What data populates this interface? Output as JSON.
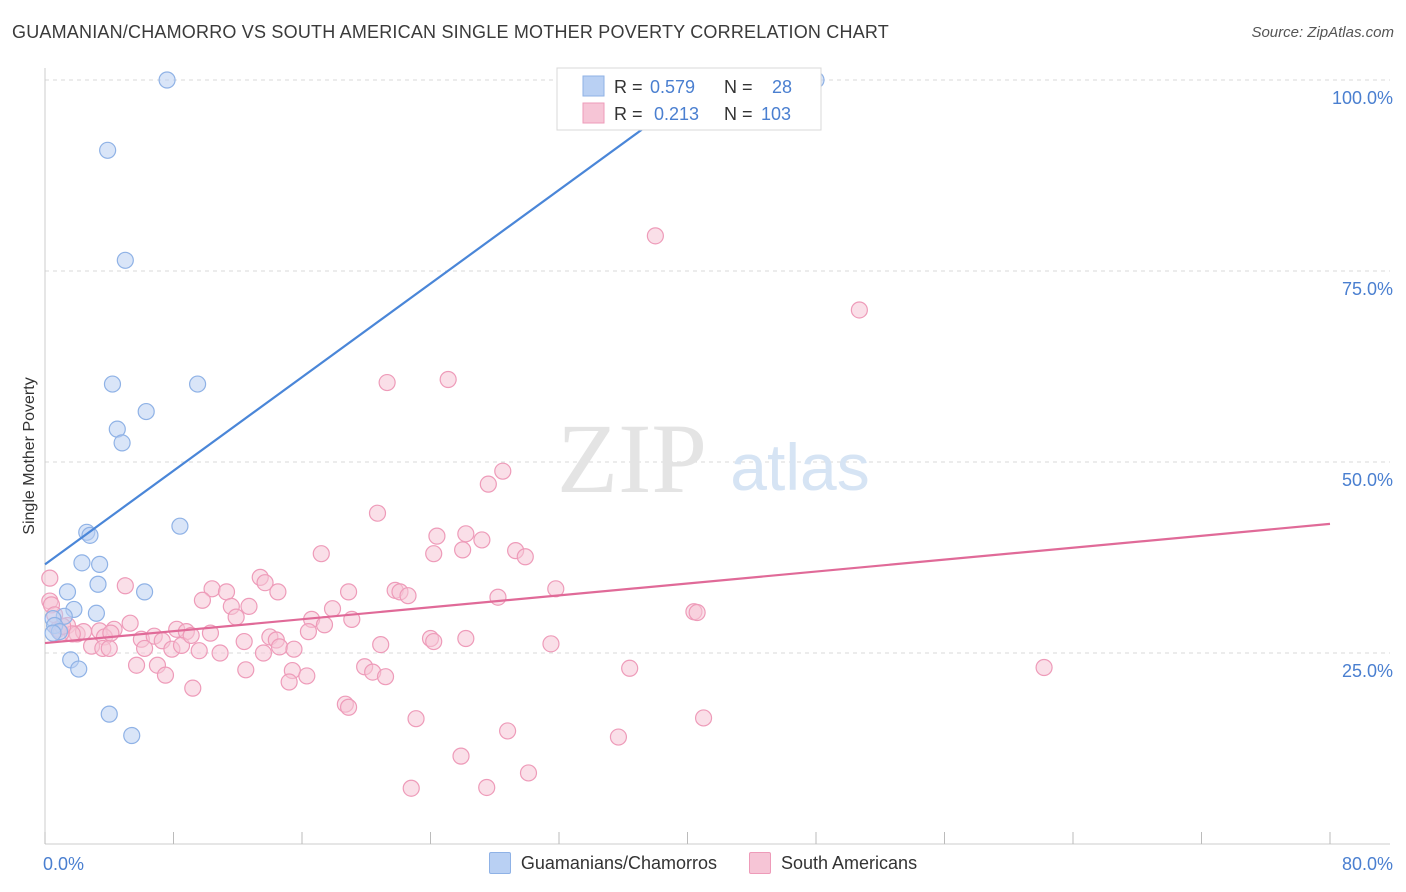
{
  "header": {
    "title": "GUAMANIAN/CHAMORRO VS SOUTH AMERICAN SINGLE MOTHER POVERTY CORRELATION CHART",
    "source": "Source: ZipAtlas.com"
  },
  "watermark": {
    "part1": "ZIP",
    "part2": "atlas"
  },
  "colors": {
    "blue": "#4a86d8",
    "blue_fill": "#b9d0f3",
    "blue_stroke": "#8fb2e6",
    "pink": "#e06a98",
    "pink_fill": "#f6c5d6",
    "pink_stroke": "#ee9bb9",
    "axis_label": "#4a7fd0",
    "grid": "#d9d9d9"
  },
  "stats_legend": [
    {
      "r_label": "R =",
      "r_value": "0.579",
      "n_label": "N =",
      "n_value": "28",
      "series": "blue"
    },
    {
      "r_label": "R =",
      "r_value": "0.213",
      "n_label": "N =",
      "n_value": "103",
      "series": "pink"
    }
  ],
  "bottom_legend": [
    {
      "label": "Guamanians/Chamorros",
      "series": "blue"
    },
    {
      "label": "South Americans",
      "series": "pink"
    }
  ],
  "chart_data": {
    "type": "scatter",
    "xlabel": "",
    "ylabel": "Single Mother Poverty",
    "xlim": [
      0,
      80
    ],
    "ylim": [
      0,
      100
    ],
    "x_tick_labels": [
      "0.0%",
      "80.0%"
    ],
    "y_ticks": [
      {
        "value": 25,
        "label": "25.0%"
      },
      {
        "value": 50,
        "label": "50.0%"
      },
      {
        "value": 75,
        "label": "75.0%"
      },
      {
        "value": 100,
        "label": "100.0%"
      }
    ],
    "series": [
      {
        "name": "Guamanians/Chamorros",
        "color": "blue",
        "trend": {
          "x0": 0,
          "y0": 36.6,
          "x1": 41.4,
          "y1": 100
        },
        "points": [
          [
            7.6,
            100
          ],
          [
            48.0,
            100
          ],
          [
            3.9,
            90.8
          ],
          [
            5.0,
            76.4
          ],
          [
            4.2,
            60.2
          ],
          [
            9.5,
            60.2
          ],
          [
            6.3,
            56.6
          ],
          [
            4.5,
            54.3
          ],
          [
            4.8,
            52.5
          ],
          [
            8.4,
            41.6
          ],
          [
            2.6,
            40.8
          ],
          [
            2.8,
            40.4
          ],
          [
            2.3,
            36.8
          ],
          [
            3.4,
            36.6
          ],
          [
            3.3,
            34.0
          ],
          [
            6.2,
            33.0
          ],
          [
            1.4,
            33.0
          ],
          [
            1.8,
            30.7
          ],
          [
            3.2,
            30.2
          ],
          [
            1.2,
            29.8
          ],
          [
            0.5,
            29.5
          ],
          [
            0.6,
            28.6
          ],
          [
            0.9,
            27.8
          ],
          [
            0.5,
            27.6
          ],
          [
            1.6,
            24.1
          ],
          [
            2.1,
            22.9
          ],
          [
            4.0,
            17.0
          ],
          [
            5.4,
            14.2
          ]
        ]
      },
      {
        "name": "South Americans",
        "color": "pink",
        "trend": {
          "x0": 0,
          "y0": 26.3,
          "x1": 80,
          "y1": 41.9
        },
        "points": [
          [
            38.0,
            79.6
          ],
          [
            50.7,
            69.9
          ],
          [
            21.3,
            60.4
          ],
          [
            25.1,
            60.8
          ],
          [
            28.5,
            48.8
          ],
          [
            27.6,
            47.1
          ],
          [
            20.7,
            43.3
          ],
          [
            24.4,
            40.3
          ],
          [
            26.2,
            40.6
          ],
          [
            27.2,
            39.8
          ],
          [
            26.0,
            38.5
          ],
          [
            29.3,
            38.4
          ],
          [
            24.2,
            38.0
          ],
          [
            29.9,
            37.6
          ],
          [
            17.2,
            38.0
          ],
          [
            13.4,
            34.9
          ],
          [
            13.7,
            34.2
          ],
          [
            5.0,
            33.8
          ],
          [
            10.4,
            33.4
          ],
          [
            11.3,
            33.0
          ],
          [
            14.5,
            33.0
          ],
          [
            18.9,
            33.0
          ],
          [
            21.8,
            33.2
          ],
          [
            22.1,
            33.0
          ],
          [
            22.6,
            32.5
          ],
          [
            31.8,
            33.4
          ],
          [
            9.8,
            31.9
          ],
          [
            11.6,
            31.1
          ],
          [
            12.7,
            31.1
          ],
          [
            17.9,
            30.8
          ],
          [
            28.2,
            32.3
          ],
          [
            40.4,
            30.4
          ],
          [
            40.6,
            30.3
          ],
          [
            11.9,
            29.7
          ],
          [
            16.6,
            29.4
          ],
          [
            19.1,
            29.4
          ],
          [
            5.3,
            28.9
          ],
          [
            17.4,
            28.7
          ],
          [
            1.4,
            28.6
          ],
          [
            0.8,
            28.1
          ],
          [
            2.0,
            27.5
          ],
          [
            3.4,
            27.9
          ],
          [
            4.3,
            28.1
          ],
          [
            8.2,
            28.1
          ],
          [
            8.8,
            27.8
          ],
          [
            10.3,
            27.6
          ],
          [
            14.0,
            27.1
          ],
          [
            16.4,
            27.8
          ],
          [
            2.4,
            27.8
          ],
          [
            1.7,
            27.5
          ],
          [
            1.0,
            27.6
          ],
          [
            3.7,
            27.1
          ],
          [
            6.0,
            26.8
          ],
          [
            6.8,
            27.2
          ],
          [
            7.3,
            26.6
          ],
          [
            12.4,
            26.5
          ],
          [
            14.4,
            26.7
          ],
          [
            24.0,
            26.9
          ],
          [
            24.2,
            26.5
          ],
          [
            26.2,
            26.9
          ],
          [
            31.5,
            26.2
          ],
          [
            20.9,
            26.1
          ],
          [
            2.9,
            25.9
          ],
          [
            3.6,
            25.6
          ],
          [
            4.0,
            25.6
          ],
          [
            6.2,
            25.6
          ],
          [
            7.9,
            25.5
          ],
          [
            8.5,
            26.0
          ],
          [
            9.6,
            25.3
          ],
          [
            10.9,
            25.0
          ],
          [
            13.6,
            25.0
          ],
          [
            14.6,
            25.8
          ],
          [
            15.5,
            25.5
          ],
          [
            19.9,
            23.2
          ],
          [
            20.4,
            22.5
          ],
          [
            7.0,
            23.4
          ],
          [
            5.7,
            23.4
          ],
          [
            12.5,
            22.8
          ],
          [
            15.4,
            22.7
          ],
          [
            16.3,
            22.0
          ],
          [
            21.2,
            21.9
          ],
          [
            36.4,
            23.0
          ],
          [
            62.2,
            23.1
          ],
          [
            7.5,
            22.1
          ],
          [
            15.2,
            21.2
          ],
          [
            9.2,
            20.4
          ],
          [
            18.7,
            18.3
          ],
          [
            18.9,
            17.9
          ],
          [
            23.1,
            16.4
          ],
          [
            41.0,
            16.5
          ],
          [
            28.8,
            14.8
          ],
          [
            35.7,
            14.0
          ],
          [
            25.9,
            11.5
          ],
          [
            30.1,
            9.3
          ],
          [
            22.8,
            7.3
          ],
          [
            27.5,
            7.4
          ],
          [
            0.3,
            34.8
          ],
          [
            0.3,
            31.8
          ],
          [
            0.4,
            31.3
          ],
          [
            0.6,
            30.0
          ],
          [
            1.1,
            28.5
          ],
          [
            4.1,
            27.6
          ],
          [
            9.1,
            27.3
          ]
        ]
      }
    ]
  }
}
